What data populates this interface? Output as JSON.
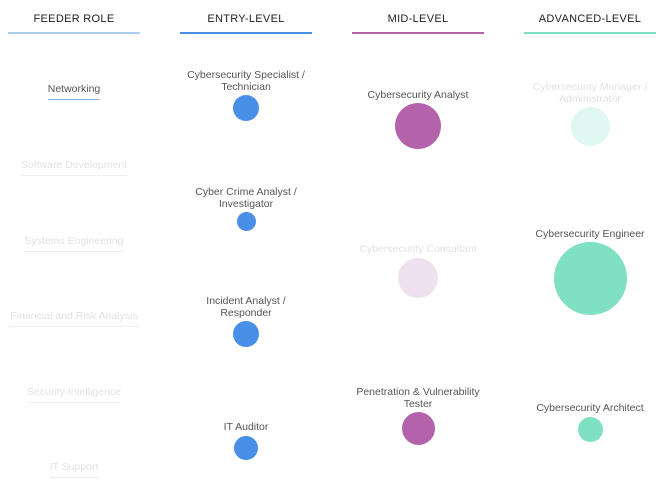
{
  "columns": [
    {
      "title": "FEEDER ROLE",
      "rule_color": "#a9d0ee"
    },
    {
      "title": "ENTRY-LEVEL",
      "rule_color": "#4a8fe7"
    },
    {
      "title": "MID-LEVEL",
      "rule_color": "#b462a9"
    },
    {
      "title": "ADVANCED-LEVEL",
      "rule_color": "#7fe0c3"
    }
  ],
  "feeder_roles": [
    {
      "label": "Networking",
      "active": true
    },
    {
      "label": "Software Development",
      "active": false
    },
    {
      "label": "Systems Engineering",
      "active": false
    },
    {
      "label": "Financial and Risk Analysis",
      "active": false
    },
    {
      "label": "Security Intelligence",
      "active": false
    },
    {
      "label": "IT Support",
      "active": false
    }
  ],
  "entry_roles": [
    {
      "line1": "Cybersecurity Specialist /",
      "line2": "Technician",
      "active": true
    },
    {
      "line1": "Cyber Crime Analyst /",
      "line2": "Investigator",
      "active": true
    },
    {
      "line1": "Incident Analyst /",
      "line2": "Responder",
      "active": true
    },
    {
      "line1": "IT Auditor",
      "line2": "",
      "active": true
    }
  ],
  "mid_roles": [
    {
      "line1": "Cybersecurity Analyst",
      "line2": "",
      "active": true
    },
    {
      "line1": "Cybersecurity Consultant",
      "line2": "",
      "active": false
    },
    {
      "line1": "Penetration & Vulnerability",
      "line2": "Tester",
      "active": true
    }
  ],
  "advanced_roles": [
    {
      "line1": "Cybersecurity Manager /",
      "line2": "Administrator",
      "active": false
    },
    {
      "line1": "Cybersecurity Engineer",
      "line2": "",
      "active": true
    },
    {
      "line1": "Cybersecurity Architect",
      "line2": "",
      "active": true
    }
  ],
  "colors": {
    "entry": "#4a8fe7",
    "mid": "#b462a9",
    "mid_faded": "#f0e1ef",
    "advanced": "#7fe0c3",
    "advanced_faded": "#e1f7f1",
    "text_active": "#555555",
    "text_faded": "#e2e2e2"
  }
}
